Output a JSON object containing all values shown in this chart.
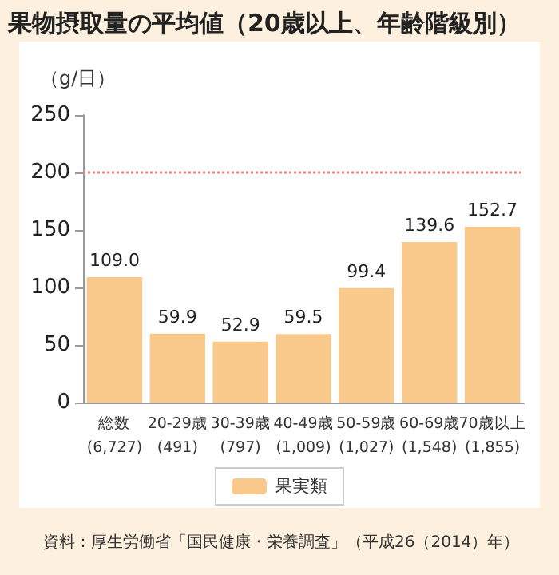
{
  "chart_data": {
    "type": "bar",
    "title": "果物摂取量の平均値（20歳以上、年齢階級別）",
    "ylabel": "（g/日）",
    "categories": [
      "総数\n(6,727)",
      "20-29歳\n(491)",
      "30-39歳\n(797)",
      "40-49歳\n(1,009)",
      "50-59歳\n(1,027)",
      "60-69歳\n(1,548)",
      "70歳以上\n(1,855)"
    ],
    "series": [
      {
        "name": "果実類",
        "color": "#f9c98b",
        "values": [
          109.0,
          59.9,
          52.9,
          59.5,
          99.4,
          139.6,
          152.7
        ]
      }
    ],
    "value_labels": [
      "109.0",
      "59.9",
      "52.9",
      "59.5",
      "99.4",
      "139.6",
      "152.7"
    ],
    "ylim": [
      0,
      250
    ],
    "yticks": [
      0,
      50,
      100,
      150,
      200,
      250
    ],
    "ref_lines": [
      {
        "axis": "y",
        "value": 200,
        "color": "#f08080",
        "line_style": "dotted"
      }
    ],
    "grid": false,
    "legend": "bottom",
    "annotations": [
      "資料：厚生労働省「国民健康・栄養調査」（平成26（2014）年）"
    ]
  }
}
